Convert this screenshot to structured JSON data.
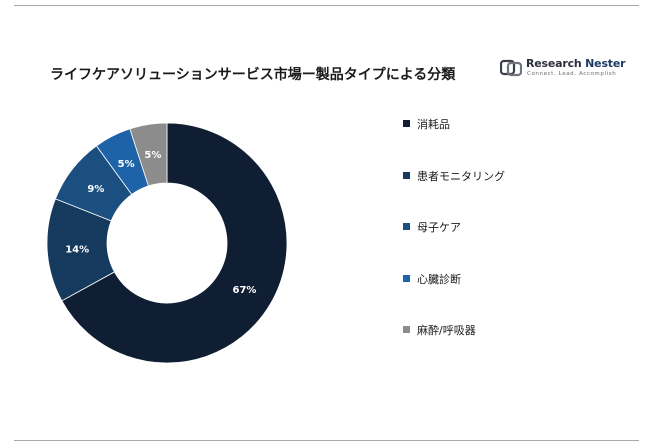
{
  "title": "ライフケアソリューションサービス市場ー製品タイプによる分類",
  "logo": {
    "name_part1": "Research ",
    "name_part2": "Nester",
    "tagline": "Connect. Lead. Accomplish",
    "icon": "research-nester-logo-icon"
  },
  "chart_data": {
    "type": "pie",
    "style": "donut",
    "title": "ライフケアソリューションサービス市場ー製品タイプによる分類",
    "legend_position": "right",
    "slices": [
      {
        "label": "消耗品",
        "value": 67,
        "display": "67%",
        "color": "#0f1e33"
      },
      {
        "label": "患者モニタリング",
        "value": 14,
        "display": "14%",
        "color": "#163a5e"
      },
      {
        "label": "母子ケア",
        "value": 9,
        "display": "9%",
        "color": "#1a4f80"
      },
      {
        "label": "心臓診断",
        "value": 5,
        "display": "5%",
        "color": "#1e63a8"
      },
      {
        "label": "麻酔/呼吸器",
        "value": 5,
        "display": "5%",
        "color": "#8c8c8c"
      }
    ]
  }
}
